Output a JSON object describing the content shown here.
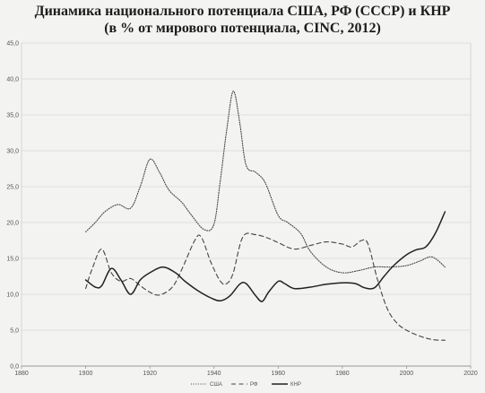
{
  "chart_data": {
    "type": "line",
    "title": "Динамика национального потенциала США, РФ (СССР) и КНР",
    "subtitle": "(в % от мирового потенциала, CINC, 2012)",
    "xlim": [
      1880,
      2020
    ],
    "ylim": [
      0,
      45
    ],
    "x_ticks": [
      "1880",
      "1900",
      "1920",
      "1940",
      "1960",
      "1980",
      "2000",
      "2020"
    ],
    "y_ticks": [
      "0,0",
      "5,0",
      "10,0",
      "15,0",
      "20,0",
      "25,0",
      "30,0",
      "35,0",
      "40,0",
      "45,0"
    ],
    "grid": true,
    "legend_position": "bottom",
    "series": [
      {
        "name": "США",
        "style": "dotted",
        "color": "#444444",
        "points": [
          [
            1900,
            18.7
          ],
          [
            1903,
            20.0
          ],
          [
            1906,
            21.5
          ],
          [
            1910,
            22.5
          ],
          [
            1914,
            22.0
          ],
          [
            1917,
            25.0
          ],
          [
            1920,
            28.8
          ],
          [
            1923,
            27.0
          ],
          [
            1926,
            24.5
          ],
          [
            1930,
            22.8
          ],
          [
            1933,
            21.0
          ],
          [
            1937,
            19.0
          ],
          [
            1940,
            19.8
          ],
          [
            1942,
            26.0
          ],
          [
            1944,
            33.0
          ],
          [
            1946,
            38.3
          ],
          [
            1948,
            34.0
          ],
          [
            1950,
            28.0
          ],
          [
            1953,
            27.0
          ],
          [
            1956,
            25.5
          ],
          [
            1960,
            21.0
          ],
          [
            1963,
            20.0
          ],
          [
            1967,
            18.5
          ],
          [
            1970,
            16.0
          ],
          [
            1975,
            13.8
          ],
          [
            1980,
            13.0
          ],
          [
            1985,
            13.3
          ],
          [
            1990,
            13.8
          ],
          [
            1995,
            13.8
          ],
          [
            2000,
            14.0
          ],
          [
            2004,
            14.6
          ],
          [
            2008,
            15.2
          ],
          [
            2012,
            13.8
          ]
        ]
      },
      {
        "name": "РФ",
        "style": "dashed",
        "color": "#444444",
        "points": [
          [
            1900,
            10.8
          ],
          [
            1902,
            13.5
          ],
          [
            1905,
            16.3
          ],
          [
            1908,
            13.0
          ],
          [
            1911,
            11.8
          ],
          [
            1914,
            12.2
          ],
          [
            1917,
            11.2
          ],
          [
            1920,
            10.3
          ],
          [
            1923,
            9.9
          ],
          [
            1927,
            11.0
          ],
          [
            1930,
            13.5
          ],
          [
            1934,
            17.5
          ],
          [
            1936,
            18.0
          ],
          [
            1939,
            14.5
          ],
          [
            1942,
            11.8
          ],
          [
            1944,
            11.5
          ],
          [
            1946,
            13.0
          ],
          [
            1949,
            18.0
          ],
          [
            1953,
            18.3
          ],
          [
            1957,
            17.8
          ],
          [
            1960,
            17.2
          ],
          [
            1965,
            16.3
          ],
          [
            1970,
            16.8
          ],
          [
            1975,
            17.3
          ],
          [
            1980,
            17.0
          ],
          [
            1983,
            16.6
          ],
          [
            1986,
            17.5
          ],
          [
            1988,
            17.0
          ],
          [
            1991,
            12.0
          ],
          [
            1994,
            8.0
          ],
          [
            1997,
            6.0
          ],
          [
            2000,
            5.0
          ],
          [
            2004,
            4.2
          ],
          [
            2008,
            3.7
          ],
          [
            2012,
            3.6
          ]
        ]
      },
      {
        "name": "КНР",
        "style": "solid",
        "color": "#222222",
        "points": [
          [
            1900,
            12.0
          ],
          [
            1903,
            11.0
          ],
          [
            1905,
            11.2
          ],
          [
            1908,
            13.6
          ],
          [
            1911,
            12.0
          ],
          [
            1914,
            10.0
          ],
          [
            1917,
            12.0
          ],
          [
            1920,
            13.0
          ],
          [
            1924,
            13.8
          ],
          [
            1928,
            13.0
          ],
          [
            1931,
            11.8
          ],
          [
            1935,
            10.5
          ],
          [
            1939,
            9.5
          ],
          [
            1942,
            9.1
          ],
          [
            1945,
            9.8
          ],
          [
            1948,
            11.4
          ],
          [
            1950,
            11.5
          ],
          [
            1953,
            9.8
          ],
          [
            1955,
            9.0
          ],
          [
            1957,
            10.3
          ],
          [
            1960,
            11.8
          ],
          [
            1962,
            11.5
          ],
          [
            1965,
            10.8
          ],
          [
            1970,
            11.0
          ],
          [
            1975,
            11.4
          ],
          [
            1980,
            11.6
          ],
          [
            1984,
            11.5
          ],
          [
            1987,
            10.9
          ],
          [
            1990,
            10.9
          ],
          [
            1993,
            12.5
          ],
          [
            1996,
            14.0
          ],
          [
            2000,
            15.5
          ],
          [
            2003,
            16.2
          ],
          [
            2006,
            16.6
          ],
          [
            2009,
            18.5
          ],
          [
            2012,
            21.5
          ]
        ]
      }
    ]
  }
}
